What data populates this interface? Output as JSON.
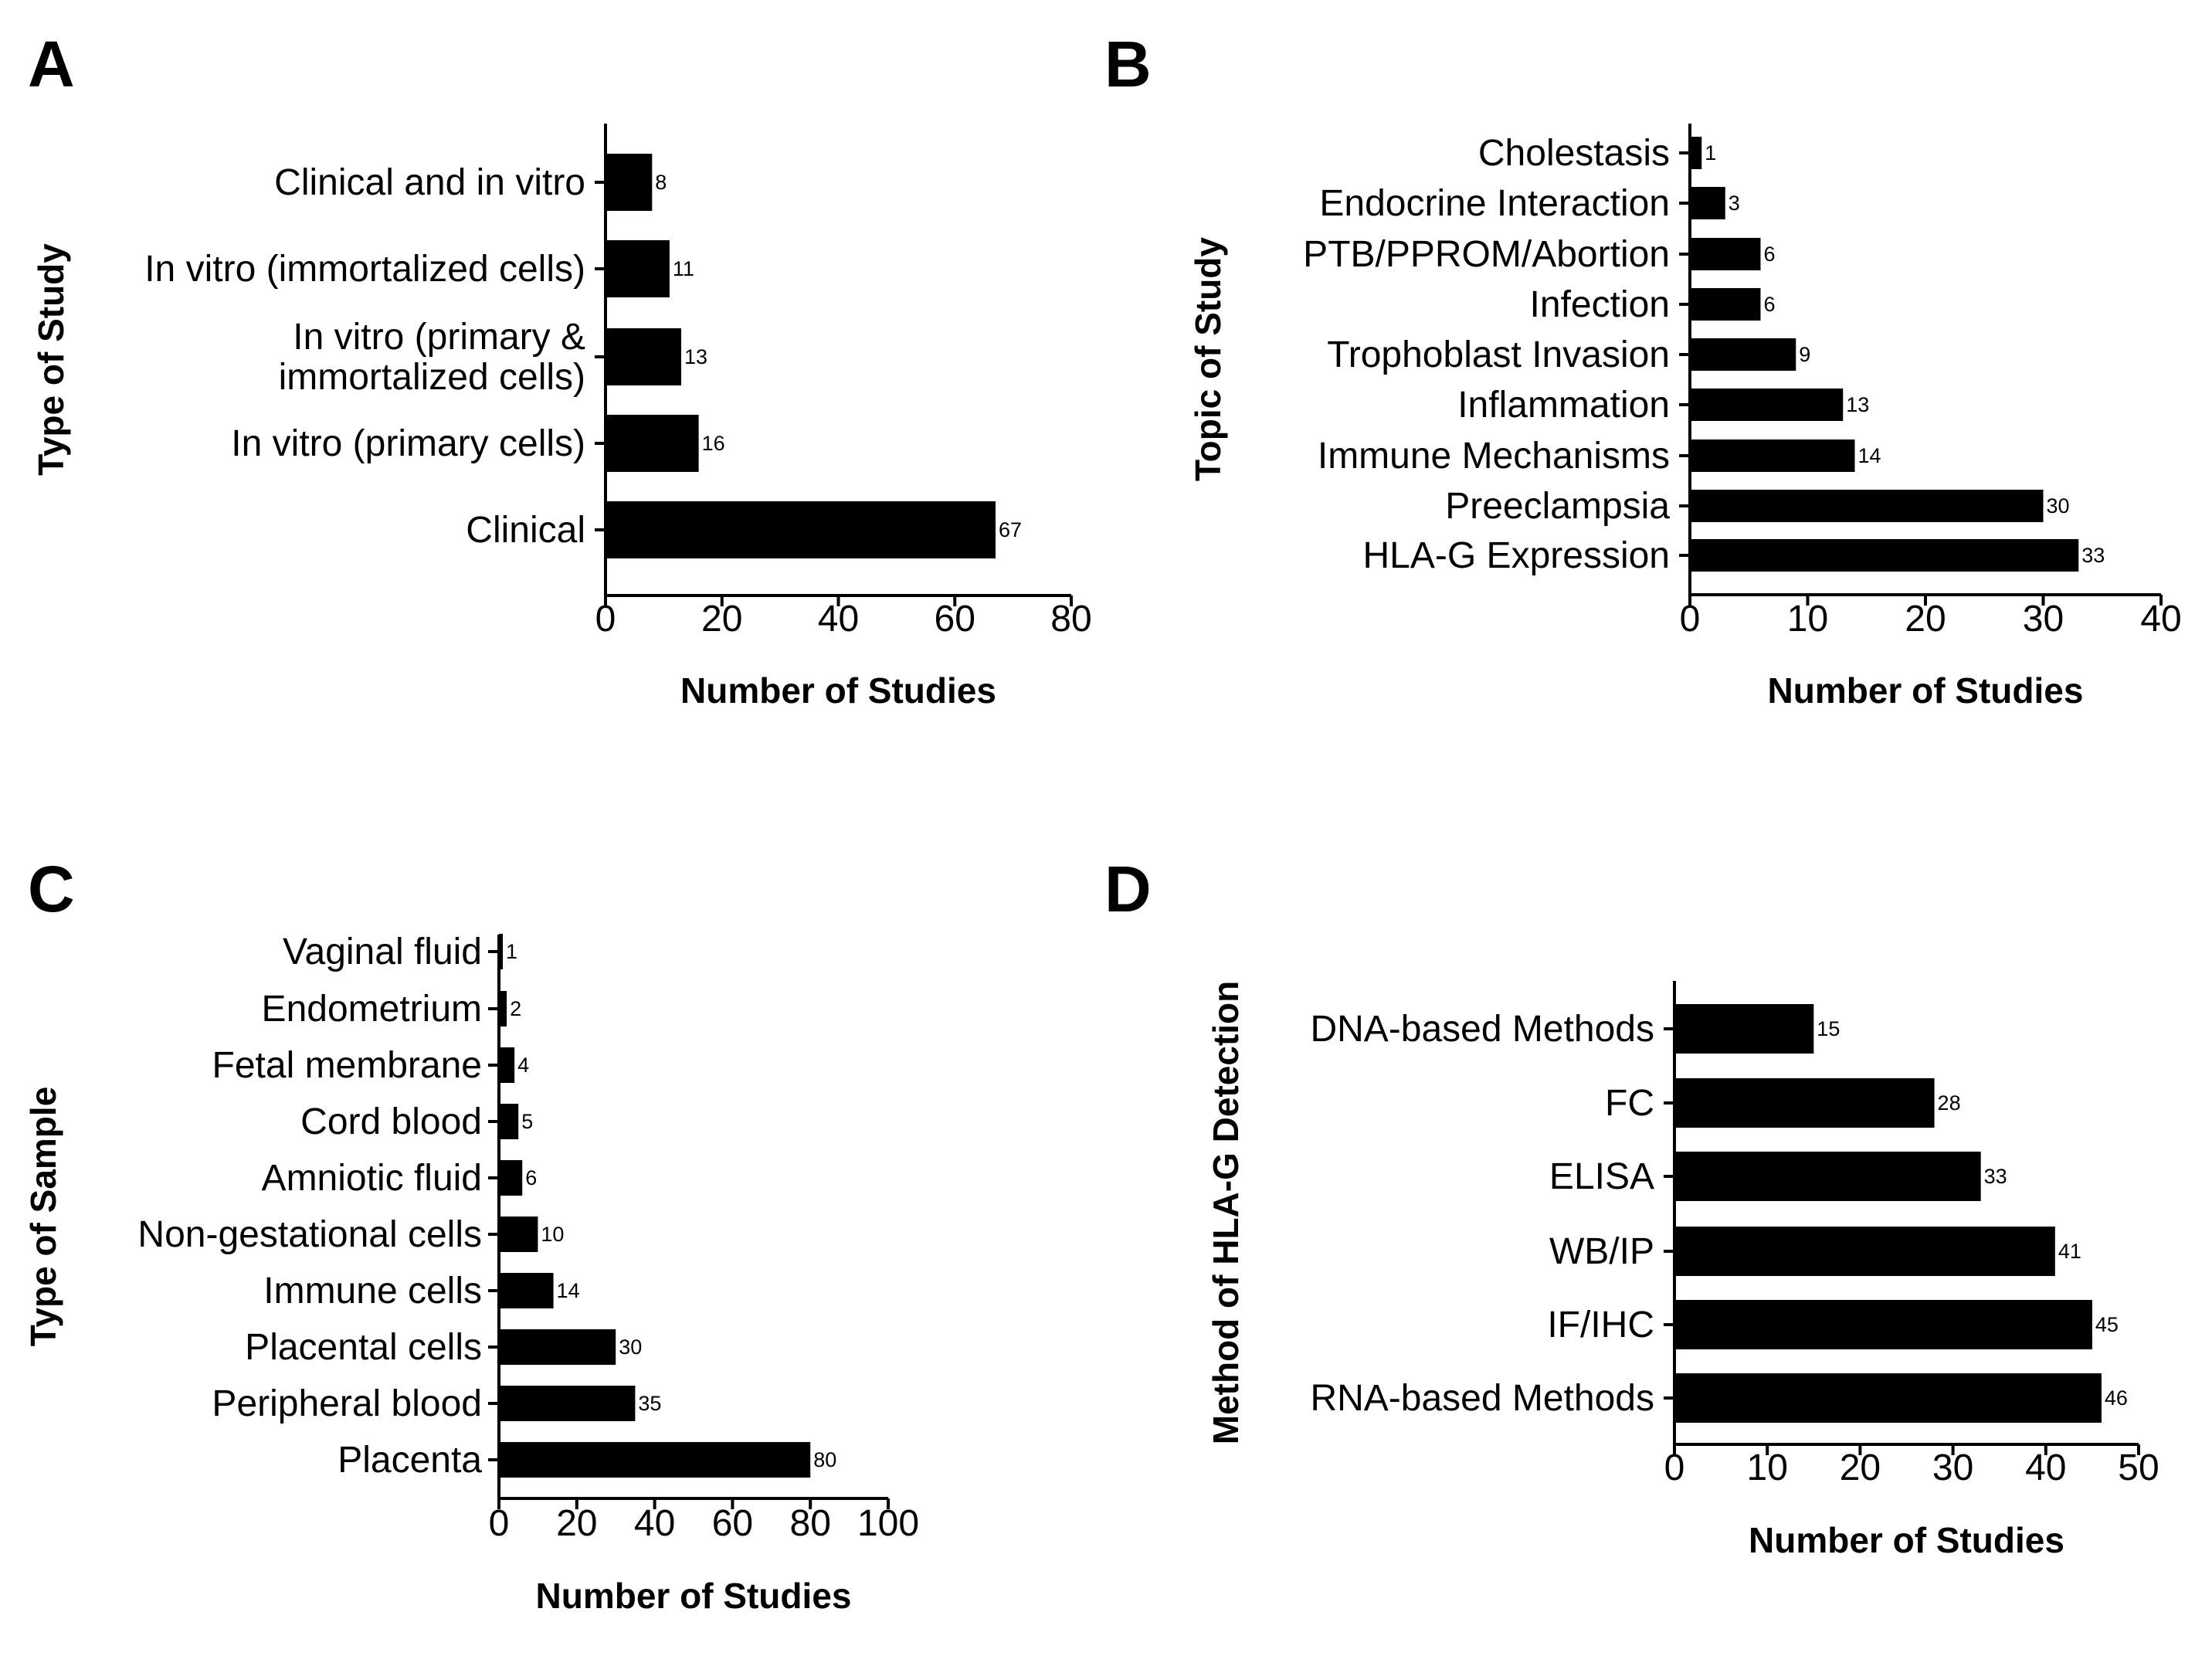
{
  "chart_data": [
    {
      "panel": "A",
      "type": "bar",
      "orientation": "horizontal",
      "xlabel": "Number of Studies",
      "ylabel": "Type of Study",
      "xlim": [
        0,
        80
      ],
      "xticks": [
        0,
        20,
        40,
        60,
        80
      ],
      "categories": [
        [
          "Clinical and in vitro"
        ],
        [
          "In vitro (immortalized cells)"
        ],
        [
          "In vitro (primary &",
          "immortalized cells)"
        ],
        [
          "In vitro (primary cells)"
        ],
        [
          "Clinical"
        ]
      ],
      "values": [
        8,
        11,
        13,
        16,
        67
      ]
    },
    {
      "panel": "B",
      "type": "bar",
      "orientation": "horizontal",
      "xlabel": "Number of Studies",
      "ylabel": "Topic of Study",
      "xlim": [
        0,
        40
      ],
      "xticks": [
        0,
        10,
        20,
        30,
        40
      ],
      "categories": [
        [
          "Cholestasis"
        ],
        [
          "Endocrine Interaction"
        ],
        [
          "PTB/PPROM/Abortion"
        ],
        [
          "Infection"
        ],
        [
          "Trophoblast Invasion"
        ],
        [
          "Inflammation"
        ],
        [
          "Immune Mechanisms"
        ],
        [
          "Preeclampsia"
        ],
        [
          "HLA-G Expression"
        ]
      ],
      "values": [
        1,
        3,
        6,
        6,
        9,
        13,
        14,
        30,
        33
      ]
    },
    {
      "panel": "C",
      "type": "bar",
      "orientation": "horizontal",
      "xlabel": "Number of Studies",
      "ylabel": "Type of Sample",
      "xlim": [
        0,
        100
      ],
      "xticks": [
        0,
        20,
        40,
        60,
        80,
        100
      ],
      "categories": [
        [
          "Vaginal fluid"
        ],
        [
          "Endometrium"
        ],
        [
          "Fetal membrane"
        ],
        [
          "Cord blood"
        ],
        [
          "Amniotic fluid"
        ],
        [
          "Non-gestational cells"
        ],
        [
          "Immune cells"
        ],
        [
          "Placental cells"
        ],
        [
          "Peripheral blood"
        ],
        [
          "Placenta"
        ]
      ],
      "values": [
        1,
        2,
        4,
        5,
        6,
        10,
        14,
        30,
        35,
        80
      ]
    },
    {
      "panel": "D",
      "type": "bar",
      "orientation": "horizontal",
      "xlabel": "Number of Studies",
      "ylabel": "Method of HLA-G Detection",
      "xlim": [
        0,
        50
      ],
      "xticks": [
        0,
        10,
        20,
        30,
        40,
        50
      ],
      "categories": [
        [
          "DNA-based Methods"
        ],
        [
          "FC"
        ],
        [
          "ELISA"
        ],
        [
          "WB/IP"
        ],
        [
          "IF/IHC"
        ],
        [
          "RNA-based Methods"
        ]
      ],
      "values": [
        15,
        28,
        33,
        41,
        45,
        46
      ]
    }
  ]
}
